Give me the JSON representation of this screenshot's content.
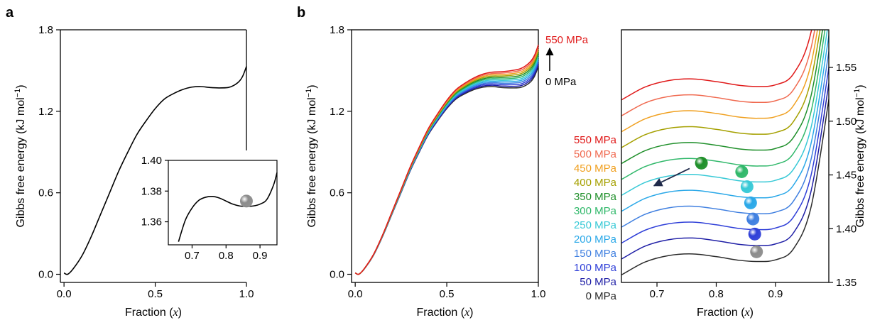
{
  "panel_labels": {
    "a": "a",
    "b": "b"
  },
  "pressure_annotation": {
    "top": "550 MPa",
    "bottom": "0 MPa"
  },
  "chart_data": [
    {
      "id": "panel-a-main",
      "type": "line",
      "xlabel": {
        "prefix": "Fraction (",
        "var": "x",
        "suffix": ")"
      },
      "ylabel": {
        "text": "Gibbs free energy (kJ mol",
        "sup": "−1",
        "close": ")"
      },
      "xlim": [
        -0.02,
        1.0
      ],
      "ylim": [
        -0.06,
        1.8
      ],
      "xticks": [
        "0.0",
        "0.5",
        "1.0"
      ],
      "xtick_values": [
        0.0,
        0.5,
        1.0
      ],
      "yticks": [
        "0.0",
        "0.6",
        "1.2",
        "1.8"
      ],
      "ytick_values": [
        0.0,
        0.6,
        1.2,
        1.8
      ],
      "series": [
        {
          "x": [
            0,
            0.02,
            0.05,
            0.1,
            0.15,
            0.2,
            0.25,
            0.3,
            0.35,
            0.4,
            0.45,
            0.5,
            0.55,
            0.6,
            0.65,
            0.7,
            0.75,
            0.8,
            0.85,
            0.9,
            0.93,
            0.96,
            0.98,
            1.0
          ],
          "y": [
            0.01,
            0.0,
            0.04,
            0.14,
            0.28,
            0.44,
            0.6,
            0.76,
            0.9,
            1.03,
            1.13,
            1.22,
            1.29,
            1.33,
            1.36,
            1.378,
            1.382,
            1.375,
            1.372,
            1.375,
            1.39,
            1.42,
            1.46,
            1.53
          ],
          "color": "#000000"
        }
      ]
    },
    {
      "id": "panel-a-inset",
      "type": "line",
      "xlim": [
        0.63,
        0.95
      ],
      "ylim": [
        1.345,
        1.4
      ],
      "xticks": [
        "0.7",
        "0.8",
        "0.9"
      ],
      "xtick_values": [
        0.7,
        0.8,
        0.9
      ],
      "yticks": [
        "1.36",
        "1.38",
        "1.40"
      ],
      "ytick_values": [
        1.36,
        1.38,
        1.4
      ],
      "series": [
        {
          "x": [
            0.66,
            0.68,
            0.7,
            0.72,
            0.74,
            0.76,
            0.78,
            0.8,
            0.82,
            0.84,
            0.86,
            0.88,
            0.9,
            0.92,
            0.94,
            0.95
          ],
          "y": [
            1.347,
            1.361,
            1.369,
            1.374,
            1.376,
            1.3765,
            1.3755,
            1.3735,
            1.3715,
            1.3703,
            1.37,
            1.3703,
            1.3715,
            1.3745,
            1.384,
            1.392
          ],
          "color": "#000000"
        }
      ],
      "marker": {
        "x": 0.86,
        "y": 1.3735,
        "color": "#8c8c8c"
      }
    },
    {
      "id": "panel-b-main",
      "type": "line",
      "xlabel": {
        "prefix": "Fraction (",
        "var": "x",
        "suffix": ")"
      },
      "ylabel": {
        "text": "Gibbs free energy (kJ mol",
        "sup": "−1",
        "close": ")"
      },
      "xlim": [
        -0.02,
        1.0
      ],
      "ylim": [
        -0.06,
        1.8
      ],
      "xticks": [
        "0.0",
        "0.5",
        "1.0"
      ],
      "xtick_values": [
        0.0,
        0.5,
        1.0
      ],
      "yticks": [
        "0.0",
        "0.6",
        "1.2",
        "1.8"
      ],
      "ytick_values": [
        0.0,
        0.6,
        1.2,
        1.8
      ],
      "base_x": [
        0,
        0.02,
        0.05,
        0.1,
        0.15,
        0.2,
        0.25,
        0.3,
        0.35,
        0.4,
        0.45,
        0.5,
        0.55,
        0.6,
        0.65,
        0.7,
        0.75,
        0.8,
        0.85,
        0.9,
        0.93,
        0.96,
        0.98,
        1.0
      ],
      "base_y": [
        0.01,
        0.0,
        0.04,
        0.14,
        0.28,
        0.44,
        0.6,
        0.76,
        0.9,
        1.03,
        1.13,
        1.22,
        1.29,
        1.33,
        1.36,
        1.378,
        1.382,
        1.375,
        1.372,
        1.375,
        1.39,
        1.42,
        1.46,
        1.53
      ],
      "pressure_shift_per_50MPa": 0.0145,
      "series": [
        {
          "pressure": 0,
          "color": "#2b2b2b"
        },
        {
          "pressure": 50,
          "color": "#1f1fa6"
        },
        {
          "pressure": 100,
          "color": "#2f3fd8"
        },
        {
          "pressure": 150,
          "color": "#3f7fe0"
        },
        {
          "pressure": 200,
          "color": "#2aa8e8"
        },
        {
          "pressure": 250,
          "color": "#37c9d6"
        },
        {
          "pressure": 300,
          "color": "#30b86a"
        },
        {
          "pressure": 350,
          "color": "#1f8f2a"
        },
        {
          "pressure": 400,
          "color": "#a5a000"
        },
        {
          "pressure": 450,
          "color": "#f0a020"
        },
        {
          "pressure": 500,
          "color": "#f06a50"
        },
        {
          "pressure": 550,
          "color": "#e01a1a"
        }
      ]
    },
    {
      "id": "panel-b-zoom",
      "type": "line",
      "xlabel": {
        "prefix": "Fraction (",
        "var": "x",
        "suffix": ")"
      },
      "ylabel": {
        "text": "Gibbs free energy (kJ mol",
        "sup": "−1",
        "close": ")"
      },
      "xlim": [
        0.64,
        0.99
      ],
      "ylim": [
        1.35,
        1.585
      ],
      "xticks": [
        "0.7",
        "0.8",
        "0.9"
      ],
      "xtick_values": [
        0.7,
        0.8,
        0.9
      ],
      "yticks": [
        "1.35",
        "1.40",
        "1.45",
        "1.50",
        "1.55"
      ],
      "ytick_values": [
        1.35,
        1.4,
        1.45,
        1.5,
        1.55
      ],
      "legend": [
        "550 MPa",
        "500 MPa",
        "450 MPa",
        "400 MPa",
        "350 MPa",
        "300 MPa",
        "250 MPa",
        "200 MPa",
        "150 MPa",
        "100 MPa",
        "50 MPa",
        "0 MPa"
      ],
      "legend_colors": [
        "#e01a1a",
        "#f06a50",
        "#f0a020",
        "#a5a000",
        "#1f8f2a",
        "#30b86a",
        "#37c9d6",
        "#2aa8e8",
        "#3f7fe0",
        "#2f3fd8",
        "#1f1fa6",
        "#2b2b2b"
      ],
      "markers": [
        {
          "x": 0.868,
          "y": 1.3785,
          "color": "#8c8c8c"
        },
        {
          "x": 0.865,
          "y": 1.395,
          "color": "#2f3fd8"
        },
        {
          "x": 0.862,
          "y": 1.409,
          "color": "#3f7fe0"
        },
        {
          "x": 0.858,
          "y": 1.424,
          "color": "#2aa8e8"
        },
        {
          "x": 0.852,
          "y": 1.439,
          "color": "#37c9d6"
        },
        {
          "x": 0.843,
          "y": 1.453,
          "color": "#30b86a"
        },
        {
          "x": 0.775,
          "y": 1.461,
          "color": "#1f8f2a"
        }
      ],
      "arrow": {
        "from": [
          0.755,
          1.456
        ],
        "to": [
          0.695,
          1.44
        ]
      }
    }
  ]
}
